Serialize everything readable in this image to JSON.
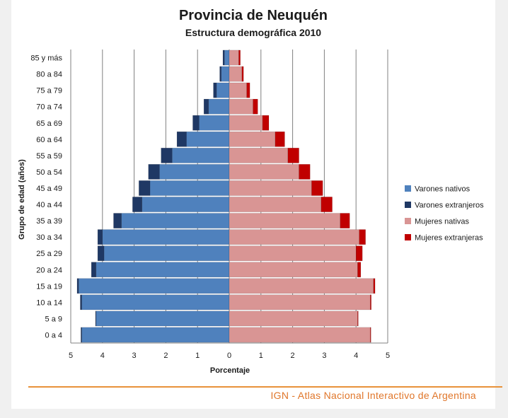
{
  "chart_data": {
    "type": "bar",
    "orientation": "horizontal-population-pyramid",
    "title": "Provincia de Neuquén",
    "subtitle": "Estructura demográfica 2010",
    "xlabel": "Porcentaje",
    "ylabel": "Grupo de edad (años)",
    "xlim": [
      -5,
      5
    ],
    "xticks": [
      "5",
      "4",
      "3",
      "2",
      "1",
      "0",
      "1",
      "2",
      "3",
      "4",
      "5"
    ],
    "grid": "vertical",
    "legend_position": "right",
    "categories": [
      "85 y más",
      "80 a 84",
      "75 a 79",
      "70 a 74",
      "65 a 69",
      "60 a 64",
      "55 a 59",
      "50 a 54",
      "45 a 49",
      "40 a 44",
      "35 a 39",
      "30 a 34",
      "25 a 29",
      "20 a 24",
      "15 a 19",
      "10 a 14",
      "5 a 9",
      "0 a 4"
    ],
    "series": [
      {
        "name": "Varones nativos",
        "color": "#4f81bd",
        "side": "left",
        "values": [
          0.15,
          0.25,
          0.4,
          0.65,
          0.95,
          1.35,
          1.8,
          2.2,
          2.5,
          2.75,
          3.4,
          4.0,
          3.95,
          4.2,
          4.75,
          4.65,
          4.2,
          4.65
        ]
      },
      {
        "name": "Varones extranjeros",
        "color": "#1f3864",
        "side": "left",
        "values": [
          0.05,
          0.05,
          0.1,
          0.15,
          0.2,
          0.3,
          0.35,
          0.35,
          0.35,
          0.3,
          0.25,
          0.15,
          0.2,
          0.15,
          0.05,
          0.05,
          0.02,
          0.03
        ]
      },
      {
        "name": "Mujeres nativas",
        "color": "#d99594",
        "side": "right",
        "values": [
          0.3,
          0.4,
          0.55,
          0.75,
          1.05,
          1.45,
          1.85,
          2.2,
          2.6,
          2.9,
          3.5,
          4.1,
          4.0,
          4.05,
          4.55,
          4.45,
          4.05,
          4.45
        ]
      },
      {
        "name": "Mujeres extranjeras",
        "color": "#c00000",
        "side": "right",
        "values": [
          0.05,
          0.05,
          0.1,
          0.15,
          0.2,
          0.3,
          0.35,
          0.35,
          0.35,
          0.35,
          0.3,
          0.2,
          0.2,
          0.1,
          0.05,
          0.03,
          0.02,
          0.02
        ]
      }
    ]
  },
  "footer": {
    "text": "IGN - Atlas Nacional Interactivo de Argentina",
    "accent": "#e8923a"
  }
}
